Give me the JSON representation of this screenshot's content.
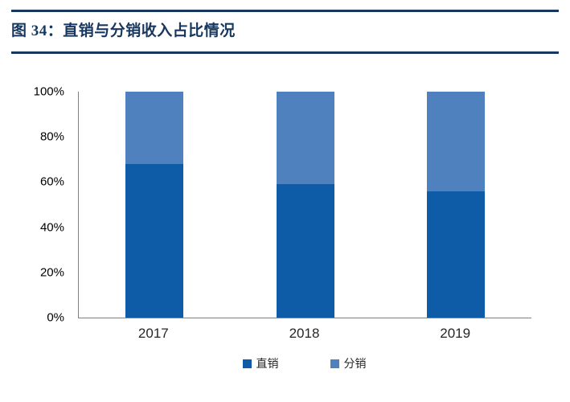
{
  "figure": {
    "title": "图 34：直销与分销收入占比情况"
  },
  "chart_data": {
    "type": "bar",
    "subtype": "stacked-100-percent",
    "title": "直销与分销收入占比情况",
    "categories": [
      "2017",
      "2018",
      "2019"
    ],
    "series": [
      {
        "key": "direct",
        "name": "直销",
        "color": "#0E5BA8",
        "values": [
          68,
          59,
          56
        ]
      },
      {
        "key": "distribution",
        "name": "分销",
        "color": "#4E81BD",
        "values": [
          32,
          41,
          44
        ]
      }
    ],
    "y_ticks": [
      100,
      80,
      60,
      40,
      20,
      0
    ],
    "y_tick_suffix": "%",
    "ylim": [
      0,
      100
    ],
    "xlabel": "",
    "ylabel": "",
    "grid": false,
    "legend_position": "bottom"
  },
  "colors": {
    "accent": "#17375E",
    "axis": "#808080",
    "text": "#000000"
  }
}
